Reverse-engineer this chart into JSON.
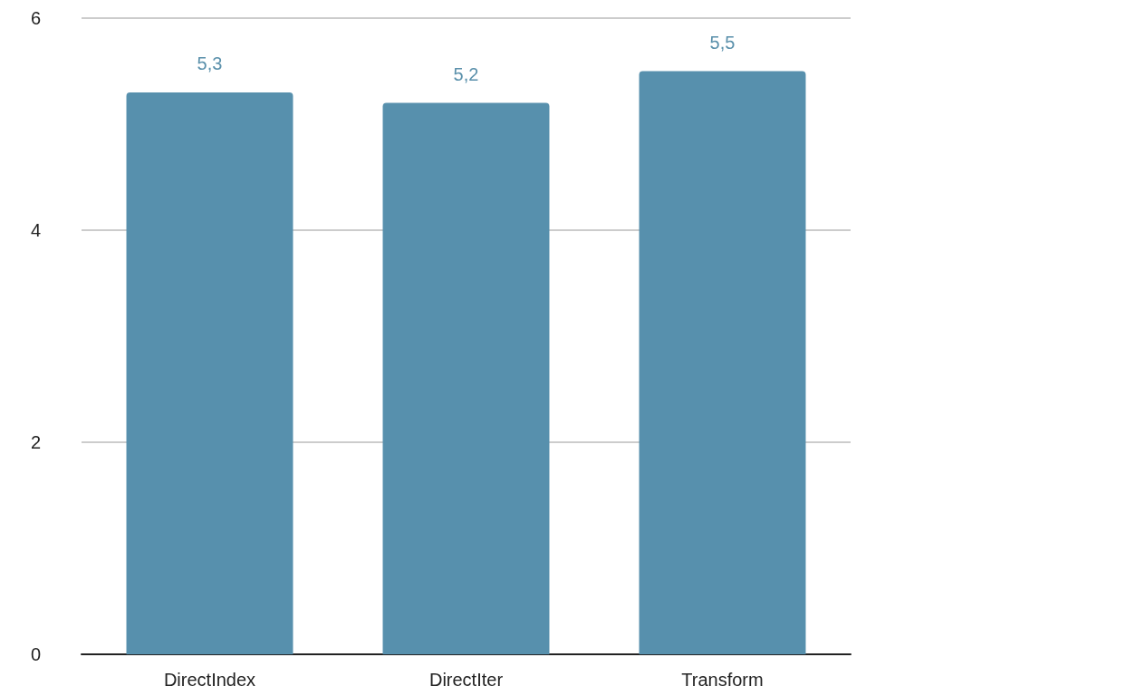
{
  "chart_data": {
    "type": "bar",
    "categories": [
      "DirectIndex",
      "DirectIter",
      "Transform"
    ],
    "values": [
      5.3,
      5.2,
      5.5
    ],
    "value_labels": [
      "5,3",
      "5,2",
      "5,5"
    ],
    "color": "#5790ad",
    "ylim": [
      0,
      6
    ],
    "yticks": [
      0,
      2,
      4,
      6
    ],
    "grid": "y"
  }
}
